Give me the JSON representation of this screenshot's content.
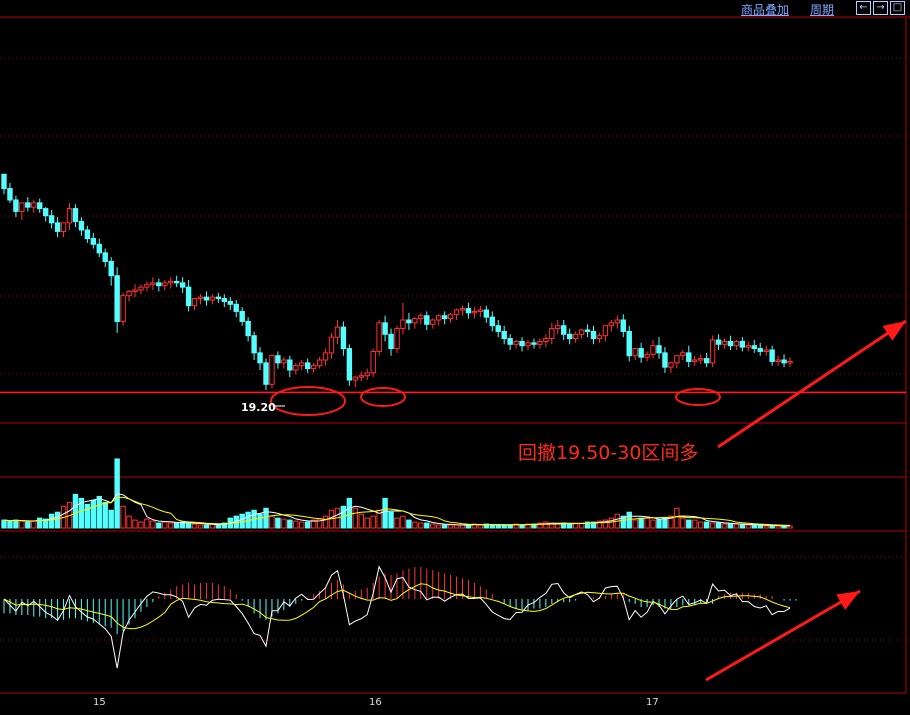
{
  "toolbar": {
    "overlay_label": "商品叠加",
    "period_label": "周期",
    "nav_left": "←",
    "nav_right": "→",
    "nav_max": "□"
  },
  "annotation": "回撤19.50-30区间多",
  "price_label": "19.20",
  "x_labels": [
    "15",
    "16",
    "17"
  ],
  "colors": {
    "up": "#ff3232",
    "down": "#54ffff",
    "grid": "#8b0000",
    "frame": "#b80000",
    "ma_white": "#ffffff",
    "ma_yellow": "#ffff00",
    "annotation": "#ff2a1a"
  },
  "chart_data": {
    "type": "candlestick",
    "support_level": 19.2,
    "price_range": [
      19.0,
      21.8
    ],
    "candles": [
      [
        20.72,
        20.72,
        20.62,
        20.58
      ],
      [
        20.62,
        20.66,
        20.54,
        20.52
      ],
      [
        20.54,
        20.57,
        20.46,
        20.42
      ],
      [
        20.46,
        20.5,
        20.52,
        20.4
      ],
      [
        20.52,
        20.56,
        20.49,
        20.46
      ],
      [
        20.49,
        20.54,
        20.52,
        20.45
      ],
      [
        20.52,
        20.55,
        20.48,
        20.45
      ],
      [
        20.48,
        20.49,
        20.43,
        20.39
      ],
      [
        20.43,
        20.47,
        20.38,
        20.34
      ],
      [
        20.38,
        20.42,
        20.32,
        20.28
      ],
      [
        20.32,
        20.37,
        20.38,
        20.28
      ],
      [
        20.38,
        20.52,
        20.48,
        20.33
      ],
      [
        20.48,
        20.51,
        20.39,
        20.35
      ],
      [
        20.39,
        20.42,
        20.33,
        20.29
      ],
      [
        20.33,
        20.36,
        20.27,
        20.24
      ],
      [
        20.27,
        20.31,
        20.23,
        20.2
      ],
      [
        20.23,
        20.27,
        20.17,
        20.14
      ],
      [
        20.17,
        20.2,
        20.11,
        20.07
      ],
      [
        20.11,
        20.14,
        20.01,
        19.94
      ],
      [
        20.01,
        20.07,
        19.69,
        19.61
      ],
      [
        19.69,
        19.89,
        19.87,
        19.66
      ],
      [
        19.87,
        19.91,
        19.9,
        19.83
      ],
      [
        19.9,
        19.95,
        19.91,
        19.86
      ],
      [
        19.91,
        19.95,
        19.93,
        19.88
      ],
      [
        19.93,
        19.97,
        19.95,
        19.9
      ],
      [
        19.95,
        20.0,
        19.96,
        19.91
      ],
      [
        19.96,
        19.99,
        19.94,
        19.9
      ],
      [
        19.94,
        19.98,
        19.96,
        19.91
      ],
      [
        19.96,
        20.0,
        19.97,
        19.92
      ],
      [
        19.97,
        20.01,
        19.96,
        19.93
      ],
      [
        19.96,
        20.0,
        19.93,
        19.89
      ],
      [
        19.93,
        19.98,
        19.8,
        19.76
      ],
      [
        19.8,
        19.83,
        19.85,
        19.77
      ],
      [
        19.85,
        19.88,
        19.86,
        19.81
      ],
      [
        19.86,
        19.9,
        19.84,
        19.8
      ],
      [
        19.84,
        19.88,
        19.86,
        19.81
      ],
      [
        19.86,
        19.89,
        19.85,
        19.82
      ],
      [
        19.85,
        19.88,
        19.83,
        19.79
      ],
      [
        19.83,
        19.86,
        19.81,
        19.77
      ],
      [
        19.81,
        19.84,
        19.76,
        19.72
      ],
      [
        19.76,
        19.79,
        19.69,
        19.66
      ],
      [
        19.69,
        19.72,
        19.59,
        19.55
      ],
      [
        19.59,
        19.62,
        19.47,
        19.42
      ],
      [
        19.47,
        19.51,
        19.4,
        19.35
      ],
      [
        19.4,
        19.43,
        19.25,
        19.21
      ],
      [
        19.25,
        19.46,
        19.45,
        19.22
      ],
      [
        19.45,
        19.48,
        19.4,
        19.36
      ],
      [
        19.4,
        19.44,
        19.42,
        19.36
      ],
      [
        19.42,
        19.45,
        19.35,
        19.3
      ],
      [
        19.35,
        19.4,
        19.38,
        19.32
      ],
      [
        19.38,
        19.42,
        19.4,
        19.35
      ],
      [
        19.4,
        19.43,
        19.36,
        19.33
      ],
      [
        19.36,
        19.4,
        19.38,
        19.33
      ],
      [
        19.38,
        19.44,
        19.42,
        19.36
      ],
      [
        19.42,
        19.5,
        19.47,
        19.38
      ],
      [
        19.47,
        19.61,
        19.58,
        19.43
      ],
      [
        19.58,
        19.7,
        19.65,
        19.53
      ],
      [
        19.65,
        19.69,
        19.5,
        19.45
      ],
      [
        19.5,
        19.53,
        19.28,
        19.24
      ],
      [
        19.28,
        19.31,
        19.3,
        19.23
      ],
      [
        19.3,
        19.34,
        19.31,
        19.27
      ],
      [
        19.31,
        19.36,
        19.33,
        19.28
      ],
      [
        19.33,
        19.5,
        19.48,
        19.3
      ],
      [
        19.48,
        19.7,
        19.68,
        19.45
      ],
      [
        19.68,
        19.73,
        19.6,
        19.55
      ],
      [
        19.6,
        19.64,
        19.5,
        19.45
      ],
      [
        19.5,
        19.66,
        19.64,
        19.47
      ],
      [
        19.64,
        19.82,
        19.7,
        19.6
      ],
      [
        19.7,
        19.75,
        19.68,
        19.63
      ],
      [
        19.68,
        19.72,
        19.71,
        19.64
      ],
      [
        19.71,
        19.75,
        19.73,
        19.67
      ],
      [
        19.73,
        19.76,
        19.67,
        19.63
      ],
      [
        19.67,
        19.71,
        19.7,
        19.64
      ],
      [
        19.7,
        19.74,
        19.73,
        19.66
      ],
      [
        19.73,
        19.76,
        19.71,
        19.67
      ],
      [
        19.71,
        19.75,
        19.74,
        19.68
      ],
      [
        19.74,
        19.78,
        19.77,
        19.7
      ],
      [
        19.77,
        19.8,
        19.78,
        19.73
      ],
      [
        19.78,
        19.82,
        19.75,
        19.71
      ],
      [
        19.75,
        19.79,
        19.76,
        19.71
      ],
      [
        19.76,
        19.8,
        19.77,
        19.72
      ],
      [
        19.77,
        19.8,
        19.72,
        19.68
      ],
      [
        19.72,
        19.76,
        19.66,
        19.62
      ],
      [
        19.66,
        19.7,
        19.62,
        19.58
      ],
      [
        19.62,
        19.66,
        19.57,
        19.53
      ],
      [
        19.57,
        19.6,
        19.53,
        19.49
      ],
      [
        19.53,
        19.56,
        19.55,
        19.5
      ],
      [
        19.55,
        19.58,
        19.52,
        19.48
      ],
      [
        19.52,
        19.56,
        19.54,
        19.49
      ],
      [
        19.54,
        19.57,
        19.53,
        19.5
      ],
      [
        19.53,
        19.57,
        19.55,
        19.5
      ],
      [
        19.55,
        19.6,
        19.57,
        19.51
      ],
      [
        19.57,
        19.68,
        19.64,
        19.53
      ],
      [
        19.64,
        19.7,
        19.66,
        19.6
      ],
      [
        19.66,
        19.7,
        19.6,
        19.56
      ],
      [
        19.6,
        19.64,
        19.57,
        19.53
      ],
      [
        19.57,
        19.62,
        19.6,
        19.54
      ],
      [
        19.6,
        19.64,
        19.63,
        19.57
      ],
      [
        19.63,
        19.67,
        19.62,
        19.58
      ],
      [
        19.62,
        19.66,
        19.57,
        19.53
      ],
      [
        19.57,
        19.61,
        19.59,
        19.54
      ],
      [
        19.59,
        19.63,
        19.66,
        19.55
      ],
      [
        19.66,
        19.7,
        19.68,
        19.62
      ],
      [
        19.68,
        19.73,
        19.7,
        19.64
      ],
      [
        19.7,
        19.74,
        19.62,
        19.58
      ],
      [
        19.62,
        19.66,
        19.45,
        19.41
      ],
      [
        19.45,
        19.49,
        19.5,
        19.42
      ],
      [
        19.5,
        19.54,
        19.44,
        19.4
      ],
      [
        19.44,
        19.48,
        19.46,
        19.41
      ],
      [
        19.46,
        19.56,
        19.52,
        19.43
      ],
      [
        19.52,
        19.58,
        19.47,
        19.43
      ],
      [
        19.47,
        19.51,
        19.37,
        19.33
      ],
      [
        19.37,
        19.41,
        19.4,
        19.33
      ],
      [
        19.4,
        19.44,
        19.45,
        19.36
      ],
      [
        19.45,
        19.49,
        19.47,
        19.42
      ],
      [
        19.47,
        19.52,
        19.41,
        19.37
      ],
      [
        19.41,
        19.45,
        19.42,
        19.38
      ],
      [
        19.42,
        19.46,
        19.43,
        19.39
      ],
      [
        19.43,
        19.47,
        19.4,
        19.37
      ],
      [
        19.4,
        19.59,
        19.56,
        19.37
      ],
      [
        19.56,
        19.6,
        19.53,
        19.49
      ],
      [
        19.53,
        19.57,
        19.55,
        19.5
      ],
      [
        19.55,
        19.59,
        19.52,
        19.49
      ],
      [
        19.52,
        19.56,
        19.55,
        19.49
      ],
      [
        19.55,
        19.58,
        19.51,
        19.48
      ],
      [
        19.51,
        19.55,
        19.52,
        19.48
      ],
      [
        19.52,
        19.56,
        19.5,
        19.47
      ],
      [
        19.5,
        19.54,
        19.48,
        19.45
      ],
      [
        19.48,
        19.52,
        19.49,
        19.45
      ],
      [
        19.49,
        19.52,
        19.41,
        19.38
      ],
      [
        19.41,
        19.45,
        19.42,
        19.38
      ],
      [
        19.42,
        19.46,
        19.4,
        19.37
      ],
      [
        19.4,
        19.44,
        19.41,
        19.37
      ]
    ],
    "volume": [
      8,
      7,
      8,
      7,
      6,
      7,
      10,
      9,
      14,
      16,
      22,
      26,
      34,
      30,
      24,
      28,
      32,
      26,
      18,
      70,
      22,
      12,
      8,
      6,
      9,
      7,
      5,
      6,
      5,
      5,
      6,
      5,
      4,
      3,
      3,
      4,
      3,
      5,
      10,
      12,
      14,
      16,
      18,
      14,
      20,
      12,
      10,
      9,
      8,
      7,
      6,
      6,
      8,
      9,
      12,
      18,
      20,
      22,
      30,
      20,
      14,
      10,
      12,
      18,
      30,
      16,
      10,
      12,
      8,
      6,
      5,
      5,
      4,
      3,
      3,
      3,
      3,
      3,
      3,
      4,
      3,
      4,
      3,
      3,
      3,
      3,
      4,
      3,
      4,
      4,
      5,
      6,
      5,
      4,
      5,
      4,
      5,
      5,
      6,
      6,
      7,
      8,
      10,
      14,
      12,
      16,
      8,
      10,
      10,
      8,
      9,
      10,
      12,
      20,
      10,
      8,
      8,
      6,
      6,
      5,
      5,
      4,
      4,
      4,
      3,
      3,
      3,
      3,
      2,
      2,
      2,
      2,
      2
    ],
    "macd": [
      -0.09,
      -0.09,
      -0.1,
      -0.1,
      -0.1,
      -0.11,
      -0.11,
      -0.12,
      -0.12,
      -0.13,
      -0.13,
      -0.12,
      -0.12,
      -0.13,
      -0.14,
      -0.15,
      -0.16,
      -0.17,
      -0.18,
      -0.22,
      -0.2,
      -0.16,
      -0.12,
      -0.08,
      -0.05,
      -0.02,
      0.02,
      0.04,
      0.06,
      0.08,
      0.09,
      0.1,
      0.09,
      0.1,
      0.1,
      0.1,
      0.09,
      0.08,
      0.06,
      0.03,
      -0.01,
      -0.05,
      -0.09,
      -0.12,
      -0.13,
      -0.11,
      -0.09,
      -0.07,
      -0.05,
      -0.03,
      -0.01,
      0.01,
      0.03,
      0.05,
      0.07,
      0.1,
      0.12,
      0.09,
      0.04,
      0.05,
      0.06,
      0.07,
      0.1,
      0.14,
      0.16,
      0.15,
      0.16,
      0.18,
      0.19,
      0.2,
      0.2,
      0.19,
      0.18,
      0.17,
      0.16,
      0.15,
      0.14,
      0.13,
      0.12,
      0.1,
      0.08,
      0.06,
      0.03,
      0.0,
      -0.03,
      -0.05,
      -0.06,
      -0.07,
      -0.07,
      -0.06,
      -0.06,
      -0.05,
      -0.03,
      -0.02,
      -0.02,
      -0.02,
      -0.01,
      0.0,
      0.0,
      0.01,
      0.01,
      0.02,
      0.03,
      0.04,
      0.03,
      -0.02,
      -0.03,
      -0.05,
      -0.05,
      -0.04,
      -0.05,
      -0.06,
      -0.06,
      -0.05,
      -0.04,
      -0.04,
      -0.04,
      -0.03,
      -0.02,
      -0.03,
      0.02,
      0.03,
      0.04,
      0.04,
      0.04,
      0.04,
      0.03,
      0.03,
      0.02,
      0.02,
      0.0,
      -0.01,
      -0.01,
      -0.01
    ]
  }
}
